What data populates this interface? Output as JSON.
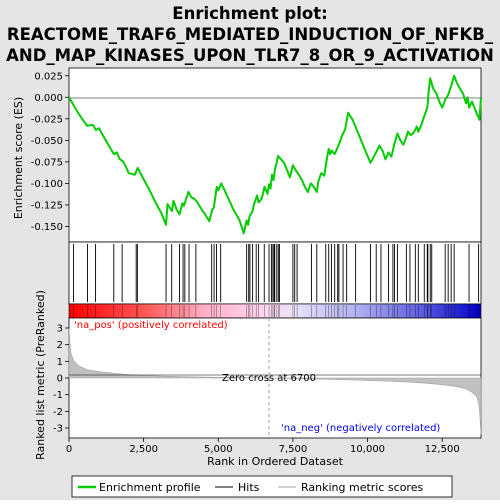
{
  "chart_data": {
    "type": "line",
    "title_lines": [
      "Enrichment plot:",
      "REACTOME_TRAF6_MEDIATED_INDUCTION_OF_NFKB_",
      "AND_MAP_KINASES_UPON_TLR7_8_OR_9_ACTIVATION"
    ],
    "es_panel": {
      "ylabel": "Enrichment score (ES)",
      "ylim": [
        -0.168,
        0.034
      ],
      "yticks": [
        0.025,
        0.0,
        -0.025,
        -0.05,
        -0.075,
        -0.1,
        -0.125,
        -0.15
      ],
      "ytick_labels": [
        "0.025",
        "0.000",
        "-0.025",
        "-0.050",
        "-0.075",
        "-0.100",
        "-0.125",
        "-0.150"
      ],
      "series": [
        {
          "name": "Enrichment profile",
          "color": "#00cc00",
          "x": [
            0,
            300,
            600,
            800,
            900,
            1000,
            1200,
            1400,
            1500,
            1600,
            1700,
            1800,
            1900,
            2000,
            2200,
            2300,
            2500,
            2700,
            2900,
            3100,
            3250,
            3300,
            3450,
            3500,
            3600,
            3700,
            3800,
            3850,
            4000,
            4100,
            4200,
            4300,
            4400,
            4500,
            4600,
            4700,
            4800,
            4850,
            4950,
            5000,
            5100,
            5200,
            5300,
            5400,
            5500,
            5600,
            5700,
            5800,
            5850,
            5950,
            6000,
            6050,
            6150,
            6200,
            6300,
            6350,
            6450,
            6550,
            6650,
            6700,
            6750,
            6800,
            6850,
            6900,
            6950,
            7000,
            7100,
            7200,
            7300,
            7400,
            7500,
            7600,
            7700,
            7800,
            7900,
            8000,
            8100,
            8200,
            8300,
            8350,
            8450,
            8550,
            8650,
            8700,
            8750,
            8800,
            8900,
            9000,
            9050,
            9150,
            9250,
            9350,
            9500,
            9700,
            9900,
            10100,
            10300,
            10400,
            10500,
            10600,
            10700,
            10800,
            10900,
            11000,
            11100,
            11200,
            11300,
            11350,
            11450,
            11550,
            11650,
            11700,
            11800,
            11900,
            12000,
            12050,
            12100,
            12200,
            12300,
            12400,
            12500,
            12600,
            12700,
            12800,
            12900,
            13000,
            13100,
            13200,
            13300,
            13350,
            13400,
            13500,
            13600,
            13700,
            13750,
            13800
          ],
          "y": [
            0.0,
            -0.018,
            -0.033,
            -0.032,
            -0.038,
            -0.036,
            -0.048,
            -0.06,
            -0.066,
            -0.064,
            -0.072,
            -0.074,
            -0.08,
            -0.088,
            -0.09,
            -0.082,
            -0.095,
            -0.108,
            -0.122,
            -0.135,
            -0.148,
            -0.124,
            -0.132,
            -0.12,
            -0.13,
            -0.136,
            -0.123,
            -0.126,
            -0.11,
            -0.116,
            -0.118,
            -0.122,
            -0.128,
            -0.133,
            -0.138,
            -0.144,
            -0.13,
            -0.128,
            -0.104,
            -0.108,
            -0.1,
            -0.107,
            -0.115,
            -0.122,
            -0.13,
            -0.136,
            -0.142,
            -0.152,
            -0.158,
            -0.143,
            -0.148,
            -0.138,
            -0.132,
            -0.124,
            -0.114,
            -0.122,
            -0.118,
            -0.104,
            -0.112,
            -0.101,
            -0.106,
            -0.09,
            -0.096,
            -0.083,
            -0.077,
            -0.068,
            -0.072,
            -0.076,
            -0.084,
            -0.093,
            -0.079,
            -0.085,
            -0.09,
            -0.096,
            -0.104,
            -0.11,
            -0.1,
            -0.104,
            -0.11,
            -0.098,
            -0.088,
            -0.091,
            -0.069,
            -0.06,
            -0.066,
            -0.062,
            -0.066,
            -0.058,
            -0.054,
            -0.044,
            -0.037,
            -0.018,
            -0.026,
            -0.043,
            -0.06,
            -0.076,
            -0.063,
            -0.056,
            -0.062,
            -0.072,
            -0.064,
            -0.069,
            -0.054,
            -0.042,
            -0.05,
            -0.055,
            -0.046,
            -0.04,
            -0.044,
            -0.041,
            -0.034,
            -0.04,
            -0.032,
            -0.022,
            -0.012,
            0.008,
            0.022,
            0.01,
            0.005,
            -0.005,
            -0.012,
            -0.003,
            0.003,
            0.013,
            0.025,
            0.016,
            0.01,
            0.004,
            -0.007,
            0.0,
            -0.012,
            -0.005,
            -0.014,
            -0.022,
            -0.026,
            0.0
          ]
        }
      ]
    },
    "hits": {
      "label": "Hits",
      "positions": [
        150,
        620,
        890,
        1500,
        1780,
        2250,
        2290,
        3250,
        3440,
        3700,
        3820,
        3880,
        4020,
        4250,
        4780,
        4860,
        4940,
        5080,
        5950,
        6020,
        6060,
        6150,
        6270,
        6350,
        6540,
        6700,
        6780,
        6830,
        6870,
        6890,
        6960,
        7010,
        7050,
        7500,
        7560,
        7640,
        8120,
        8300,
        8600,
        8700,
        8790,
        8900,
        9000,
        9040,
        9180,
        9300,
        9600,
        10100,
        10290,
        10450,
        10700,
        10850,
        10900,
        11000,
        11300,
        11420,
        11600,
        11700,
        11900,
        12000,
        12020,
        12100,
        12150,
        12600,
        12700,
        12800,
        12900,
        13400,
        13720
      ]
    },
    "ranked_panel": {
      "ylabel": "Ranked list metric (PreRanked)",
      "xlabel": "Rank in Ordered Dataset",
      "ylim": [
        -3.6,
        3.6
      ],
      "yticks": [
        3,
        2,
        1,
        0,
        -1,
        -2,
        -3
      ],
      "ytick_labels": [
        "3",
        "2",
        "1",
        "0",
        "-1",
        "-2",
        "-3"
      ],
      "xlim": [
        0,
        14000
      ],
      "xticks": [
        0,
        2500,
        5000,
        7500,
        10000,
        12500
      ],
      "xtick_labels": [
        "0",
        "2,500",
        "5,000",
        "7,500",
        "10,000",
        "12,500"
      ],
      "metric_curve": {
        "x": [
          0,
          50,
          150,
          300,
          600,
          1000,
          1500,
          2000,
          3000,
          4000,
          5000,
          6000,
          6700,
          7500,
          8500,
          9500,
          10500,
          11500,
          12000,
          12500,
          13000,
          13300,
          13500,
          13650,
          13720,
          13760,
          13800
        ],
        "y": [
          3.0,
          1.6,
          1.05,
          0.75,
          0.5,
          0.38,
          0.28,
          0.2,
          0.12,
          0.07,
          0.04,
          0.02,
          0.0,
          -0.03,
          -0.07,
          -0.12,
          -0.18,
          -0.26,
          -0.32,
          -0.4,
          -0.52,
          -0.65,
          -0.85,
          -1.1,
          -1.5,
          -2.2,
          -3.4
        ]
      },
      "zero_cross_rank": 6700,
      "zero_cross_label": "Zero cross at 6700",
      "pos_label": "'na_pos' (positively correlated)",
      "neg_label": "'na_neg' (negatively correlated)",
      "pos_color": "#ff0000",
      "neg_color": "#0000ff"
    },
    "legend": {
      "placement": "bottom",
      "entries": [
        {
          "label": "Enrichment profile",
          "color": "#00cc00"
        },
        {
          "label": "Hits",
          "color": "#000000"
        },
        {
          "label": "Ranking metric scores",
          "color": "#c0c0c0"
        }
      ]
    },
    "total_ranks": 13800
  }
}
